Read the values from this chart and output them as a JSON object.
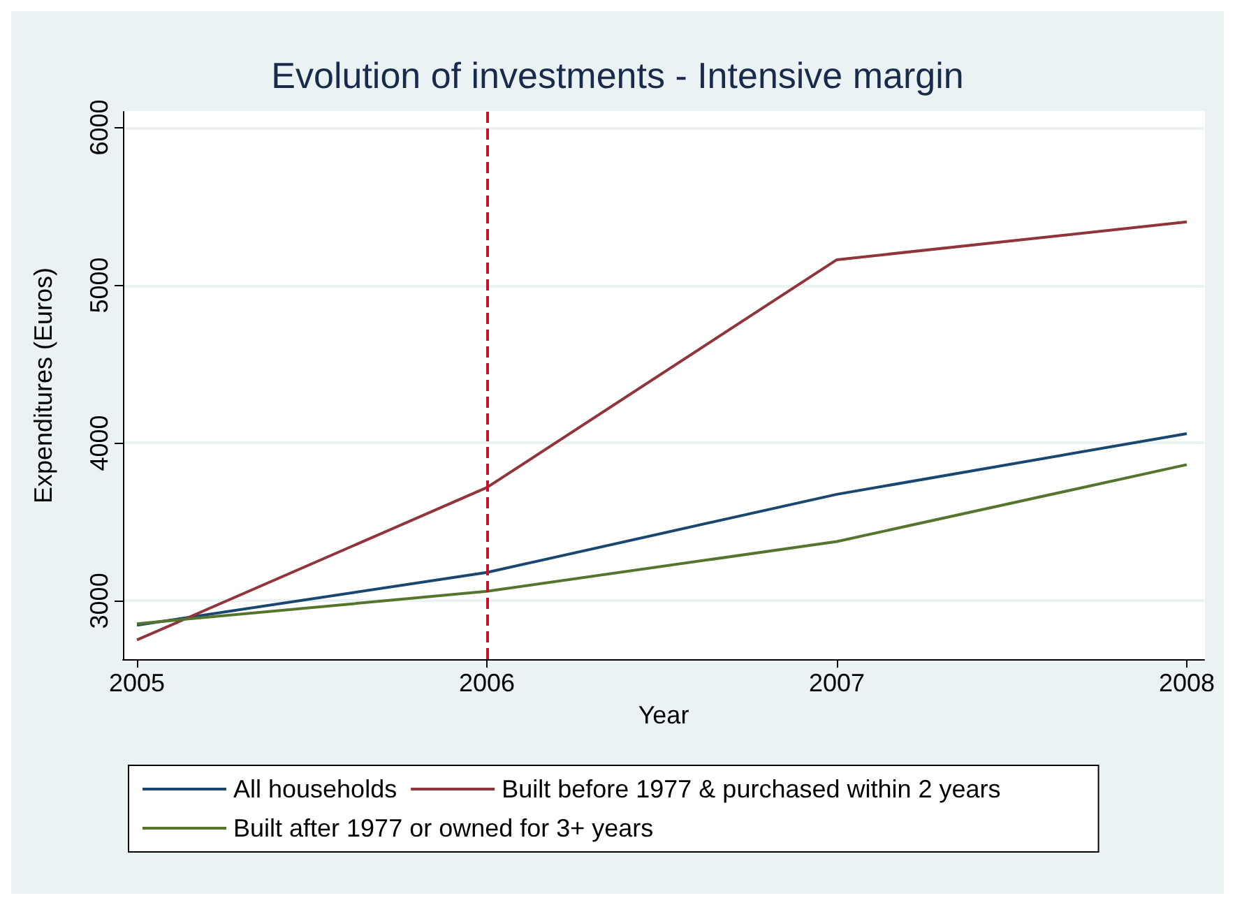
{
  "chart_data": {
    "type": "line",
    "title": "Evolution of investments - Intensive margin",
    "xlabel": "Year",
    "ylabel": "Expenditures (Euros)",
    "x": [
      2005,
      2006,
      2007,
      2008
    ],
    "series": [
      {
        "name": "All households",
        "color": "#1a476f",
        "values": [
          2846,
          3180,
          3675,
          4060
        ]
      },
      {
        "name": "Built before 1977 & purchased within 2 years",
        "color": "#90353b",
        "values": [
          2752,
          3718,
          5162,
          5402
        ]
      },
      {
        "name": "Built after 1977 or owned for 3+ years",
        "color": "#55752f",
        "values": [
          2855,
          3060,
          3376,
          3863
        ]
      }
    ],
    "xlim": [
      2004.96,
      2008.05
    ],
    "xticks": [
      2005,
      2006,
      2007,
      2008
    ],
    "ylim": [
      2630,
      6100
    ],
    "yticks": [
      3000,
      4000,
      5000,
      6000
    ],
    "ref_lines": [
      {
        "axis": "x",
        "value": 2006,
        "color": "#c8102e",
        "line_style": "dashed"
      }
    ],
    "grid": "y",
    "legend": "bottom",
    "marker": "none",
    "line_style": "solid"
  }
}
